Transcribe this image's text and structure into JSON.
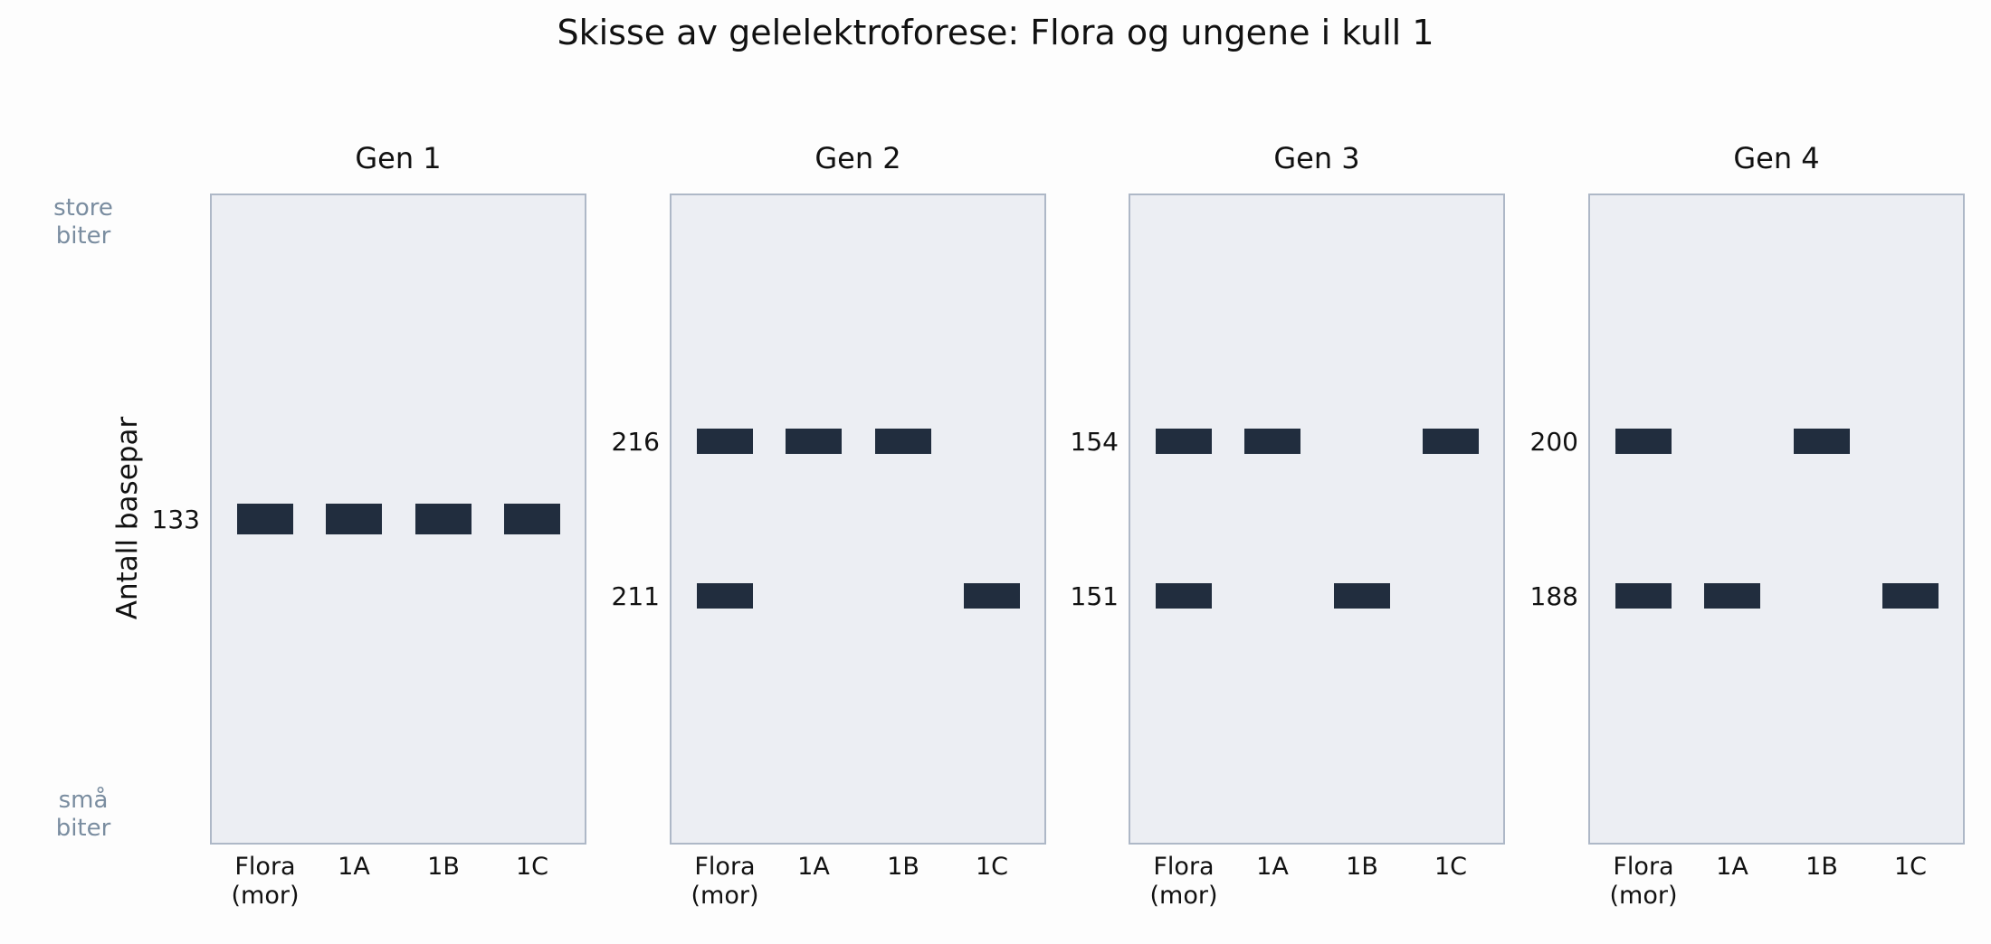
{
  "title": "Skisse av gelelektroforese: Flora og ungene i kull 1",
  "colors": {
    "background": "#fdfdfd",
    "panel_fill": "#eceef3",
    "panel_border": "#aeb8c7",
    "band": "#212d3e",
    "text": "#111111",
    "hint_text": "#7a8da0"
  },
  "ylabel": "Antall basepar",
  "y_hints": {
    "top": [
      "store",
      "biter"
    ],
    "bottom": [
      "små",
      "biter"
    ]
  },
  "lanes": [
    [
      "Flora",
      "(mor)"
    ],
    [
      "1A"
    ],
    [
      "1B"
    ],
    [
      "1C"
    ]
  ],
  "chart_data": {
    "type": "gel",
    "title": "Skisse av gelelektroforese: Flora og ungene i kull 1",
    "ylabel": "Antall basepar",
    "lanes": [
      "Flora (mor)",
      "1A",
      "1B",
      "1C"
    ],
    "genes": [
      {
        "name": "Gen 1",
        "fragments": [
          {
            "bp": 133,
            "present_in": [
              "Flora (mor)",
              "1A",
              "1B",
              "1C"
            ]
          }
        ]
      },
      {
        "name": "Gen 2",
        "fragments": [
          {
            "bp": 216,
            "present_in": [
              "Flora (mor)",
              "1A",
              "1B"
            ]
          },
          {
            "bp": 211,
            "present_in": [
              "Flora (mor)",
              "1C"
            ]
          }
        ]
      },
      {
        "name": "Gen 3",
        "fragments": [
          {
            "bp": 154,
            "present_in": [
              "Flora (mor)",
              "1A",
              "1C"
            ]
          },
          {
            "bp": 151,
            "present_in": [
              "Flora (mor)",
              "1B"
            ]
          }
        ]
      },
      {
        "name": "Gen 4",
        "fragments": [
          {
            "bp": 200,
            "present_in": [
              "Flora (mor)",
              "1B"
            ]
          },
          {
            "bp": 188,
            "present_in": [
              "Flora (mor)",
              "1A",
              "1C"
            ]
          }
        ]
      }
    ]
  }
}
